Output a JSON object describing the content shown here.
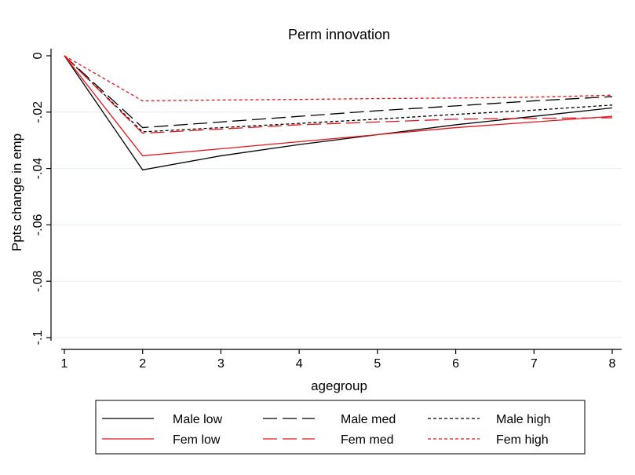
{
  "chart_data": {
    "type": "line",
    "title": "Perm innovation",
    "xlabel": "agegroup",
    "ylabel": "Ppts change in emp",
    "x": [
      1,
      2,
      3,
      4,
      5,
      6,
      7,
      8
    ],
    "xlim": [
      1,
      8
    ],
    "ylim": [
      -0.1,
      0
    ],
    "xticks": [
      "1",
      "2",
      "3",
      "4",
      "5",
      "6",
      "7",
      "8"
    ],
    "yticks": [
      {
        "value": 0,
        "label": "0"
      },
      {
        "value": -0.02,
        "label": "-.02"
      },
      {
        "value": -0.04,
        "label": "-.04"
      },
      {
        "value": -0.06,
        "label": "-.06"
      },
      {
        "value": -0.08,
        "label": "-.08"
      },
      {
        "value": -0.1,
        "label": "-.1"
      }
    ],
    "grid": "horizontal",
    "legend_position": "bottom",
    "series": [
      {
        "name": "Male low",
        "color": "#000000",
        "dash": "solid",
        "values": [
          0,
          -0.0405,
          -0.0355,
          -0.0315,
          -0.028,
          -0.0245,
          -0.0215,
          -0.0185
        ]
      },
      {
        "name": "Male med",
        "color": "#000000",
        "dash": "long-dash",
        "values": [
          0,
          -0.0255,
          -0.0235,
          -0.0215,
          -0.0195,
          -0.0178,
          -0.016,
          -0.0145
        ]
      },
      {
        "name": "Male high",
        "color": "#000000",
        "dash": "short-dash",
        "values": [
          0,
          -0.027,
          -0.0255,
          -0.024,
          -0.0225,
          -0.0208,
          -0.0193,
          -0.0175
        ]
      },
      {
        "name": "Fem low",
        "color": "#e8141c",
        "dash": "solid",
        "values": [
          0,
          -0.0355,
          -0.033,
          -0.0305,
          -0.028,
          -0.0255,
          -0.0235,
          -0.0215
        ]
      },
      {
        "name": "Fem med",
        "color": "#e8141c",
        "dash": "long-dash",
        "values": [
          0,
          -0.0275,
          -0.026,
          -0.0245,
          -0.0235,
          -0.0225,
          -0.0222,
          -0.022
        ]
      },
      {
        "name": "Fem high",
        "color": "#e8141c",
        "dash": "short-dash",
        "values": [
          0,
          -0.016,
          -0.0157,
          -0.0155,
          -0.0152,
          -0.015,
          -0.0147,
          -0.014
        ]
      }
    ]
  }
}
